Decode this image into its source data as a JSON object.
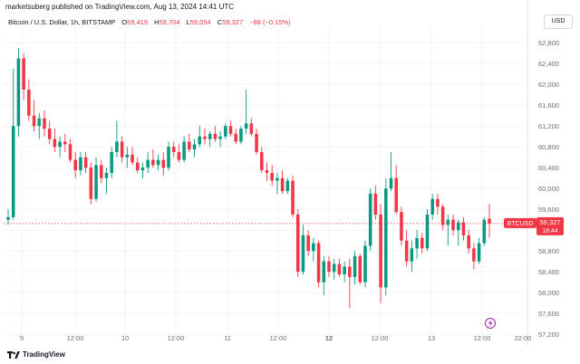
{
  "publisher": "marketsuberg published on TradingView.com, Aug 13, 2024 14:41 UTC",
  "currency_button": "USD",
  "legend": {
    "symbol": "Bitcoin / U.S. Dollar, 1h, BITSTAMP",
    "o_label": "O",
    "o_value": "59,419",
    "h_label": "H",
    "h_value": "59,704",
    "l_label": "L",
    "l_value": "59,054",
    "c_label": "C",
    "c_value": "59,327",
    "change": "−88 (−0.15%)"
  },
  "price_tag": {
    "symbol": "BTCUSD",
    "price": "59,327",
    "countdown": "18:44"
  },
  "footer_brand": "TradingView",
  "colors": {
    "up": "#089981",
    "down": "#f23645",
    "grid": "#f0f3fa",
    "text": "#131722",
    "axis_text": "#6a6d78"
  },
  "chart_data": {
    "type": "candlestick",
    "interval": "1h",
    "last_price": 59327,
    "ylim": [
      57150,
      63100
    ],
    "y_ticks": [
      "62,800",
      "62,400",
      "62,000",
      "61,600",
      "61,200",
      "60,800",
      "60,400",
      "60,000",
      "59,600",
      "59,200",
      "58,800",
      "58,400",
      "58,000",
      "57,600",
      "57,200"
    ],
    "x_tick_labels": [
      "9",
      "12:00",
      "10",
      "12:00",
      "11",
      "12:00",
      "12",
      "12:00",
      "13",
      "12:00",
      "22:00"
    ],
    "candles": [
      {
        "o": 59400,
        "h": 59600,
        "l": 59300,
        "c": 59450
      },
      {
        "o": 59450,
        "h": 62300,
        "l": 59400,
        "c": 61200
      },
      {
        "o": 61200,
        "h": 62700,
        "l": 61000,
        "c": 62500
      },
      {
        "o": 62500,
        "h": 62600,
        "l": 61700,
        "c": 61900
      },
      {
        "o": 61900,
        "h": 62100,
        "l": 61300,
        "c": 61400
      },
      {
        "o": 61400,
        "h": 61700,
        "l": 61100,
        "c": 61200
      },
      {
        "o": 61200,
        "h": 61450,
        "l": 60950,
        "c": 61350
      },
      {
        "o": 61350,
        "h": 61500,
        "l": 61000,
        "c": 61150
      },
      {
        "o": 61150,
        "h": 61300,
        "l": 60850,
        "c": 60950
      },
      {
        "o": 60950,
        "h": 61150,
        "l": 60700,
        "c": 60800
      },
      {
        "o": 60800,
        "h": 61000,
        "l": 60600,
        "c": 60900
      },
      {
        "o": 60900,
        "h": 61050,
        "l": 60700,
        "c": 60850
      },
      {
        "o": 60850,
        "h": 60950,
        "l": 60500,
        "c": 60550
      },
      {
        "o": 60550,
        "h": 60700,
        "l": 60200,
        "c": 60350
      },
      {
        "o": 60350,
        "h": 60700,
        "l": 60250,
        "c": 60600
      },
      {
        "o": 60600,
        "h": 60700,
        "l": 60300,
        "c": 60400
      },
      {
        "o": 60400,
        "h": 60500,
        "l": 59700,
        "c": 59800
      },
      {
        "o": 59800,
        "h": 60600,
        "l": 59750,
        "c": 60450
      },
      {
        "o": 60450,
        "h": 60550,
        "l": 60100,
        "c": 60200
      },
      {
        "o": 60200,
        "h": 60400,
        "l": 59900,
        "c": 60300
      },
      {
        "o": 60300,
        "h": 60800,
        "l": 60200,
        "c": 60700
      },
      {
        "o": 60700,
        "h": 61300,
        "l": 60600,
        "c": 60900
      },
      {
        "o": 60900,
        "h": 61000,
        "l": 60500,
        "c": 60600
      },
      {
        "o": 60600,
        "h": 60800,
        "l": 60400,
        "c": 60650
      },
      {
        "o": 60650,
        "h": 60800,
        "l": 60450,
        "c": 60500
      },
      {
        "o": 60500,
        "h": 60600,
        "l": 60300,
        "c": 60350
      },
      {
        "o": 60350,
        "h": 60500,
        "l": 60200,
        "c": 60400
      },
      {
        "o": 60400,
        "h": 60700,
        "l": 60300,
        "c": 60550
      },
      {
        "o": 60550,
        "h": 60750,
        "l": 60400,
        "c": 60450
      },
      {
        "o": 60450,
        "h": 60650,
        "l": 60350,
        "c": 60550
      },
      {
        "o": 60550,
        "h": 60700,
        "l": 60250,
        "c": 60400
      },
      {
        "o": 60400,
        "h": 60900,
        "l": 60350,
        "c": 60800
      },
      {
        "o": 60800,
        "h": 60900,
        "l": 60600,
        "c": 60700
      },
      {
        "o": 60700,
        "h": 60850,
        "l": 60500,
        "c": 60550
      },
      {
        "o": 60550,
        "h": 61000,
        "l": 60500,
        "c": 60900
      },
      {
        "o": 60900,
        "h": 61050,
        "l": 60700,
        "c": 60750
      },
      {
        "o": 60750,
        "h": 60950,
        "l": 60600,
        "c": 60850
      },
      {
        "o": 60850,
        "h": 61200,
        "l": 60800,
        "c": 61000
      },
      {
        "o": 61000,
        "h": 61150,
        "l": 60850,
        "c": 60950
      },
      {
        "o": 60950,
        "h": 61100,
        "l": 60800,
        "c": 61050
      },
      {
        "o": 61050,
        "h": 61200,
        "l": 60900,
        "c": 60950
      },
      {
        "o": 60950,
        "h": 61100,
        "l": 60800,
        "c": 61000
      },
      {
        "o": 61000,
        "h": 61250,
        "l": 60950,
        "c": 61200
      },
      {
        "o": 61200,
        "h": 61300,
        "l": 61000,
        "c": 61050
      },
      {
        "o": 61050,
        "h": 61150,
        "l": 60850,
        "c": 60900
      },
      {
        "o": 60900,
        "h": 61200,
        "l": 60850,
        "c": 61150
      },
      {
        "o": 61150,
        "h": 61900,
        "l": 61050,
        "c": 61250
      },
      {
        "o": 61250,
        "h": 61350,
        "l": 61000,
        "c": 61050
      },
      {
        "o": 61050,
        "h": 61150,
        "l": 60650,
        "c": 60700
      },
      {
        "o": 60700,
        "h": 60800,
        "l": 60300,
        "c": 60350
      },
      {
        "o": 60350,
        "h": 60500,
        "l": 60150,
        "c": 60300
      },
      {
        "o": 60300,
        "h": 60450,
        "l": 60050,
        "c": 60150
      },
      {
        "o": 60150,
        "h": 60300,
        "l": 59900,
        "c": 60200
      },
      {
        "o": 60200,
        "h": 60350,
        "l": 59900,
        "c": 59950
      },
      {
        "o": 59950,
        "h": 60200,
        "l": 59900,
        "c": 60150
      },
      {
        "o": 60150,
        "h": 60250,
        "l": 59450,
        "c": 59500
      },
      {
        "o": 59500,
        "h": 59600,
        "l": 58300,
        "c": 58400
      },
      {
        "o": 58400,
        "h": 59300,
        "l": 58350,
        "c": 59100
      },
      {
        "o": 59100,
        "h": 59200,
        "l": 58700,
        "c": 58800
      },
      {
        "o": 58800,
        "h": 59050,
        "l": 58600,
        "c": 58950
      },
      {
        "o": 58950,
        "h": 59000,
        "l": 58100,
        "c": 58200
      },
      {
        "o": 58200,
        "h": 58700,
        "l": 57950,
        "c": 58600
      },
      {
        "o": 58600,
        "h": 58700,
        "l": 58300,
        "c": 58400
      },
      {
        "o": 58400,
        "h": 58650,
        "l": 58250,
        "c": 58550
      },
      {
        "o": 58550,
        "h": 58650,
        "l": 58300,
        "c": 58350
      },
      {
        "o": 58350,
        "h": 58600,
        "l": 58200,
        "c": 58500
      },
      {
        "o": 58500,
        "h": 58650,
        "l": 57700,
        "c": 58300
      },
      {
        "o": 58300,
        "h": 58800,
        "l": 58150,
        "c": 58700
      },
      {
        "o": 58700,
        "h": 58750,
        "l": 58150,
        "c": 58200
      },
      {
        "o": 58200,
        "h": 59000,
        "l": 58100,
        "c": 58900
      },
      {
        "o": 58900,
        "h": 60000,
        "l": 58800,
        "c": 59900
      },
      {
        "o": 59900,
        "h": 60050,
        "l": 59400,
        "c": 59500
      },
      {
        "o": 59500,
        "h": 59700,
        "l": 57800,
        "c": 58100
      },
      {
        "o": 58100,
        "h": 60200,
        "l": 57950,
        "c": 60000
      },
      {
        "o": 60000,
        "h": 60700,
        "l": 59950,
        "c": 60200
      },
      {
        "o": 60200,
        "h": 60450,
        "l": 59500,
        "c": 59550
      },
      {
        "o": 59550,
        "h": 59650,
        "l": 58900,
        "c": 59000
      },
      {
        "o": 59000,
        "h": 59200,
        "l": 58500,
        "c": 58600
      },
      {
        "o": 58600,
        "h": 59000,
        "l": 58400,
        "c": 58850
      },
      {
        "o": 58850,
        "h": 59200,
        "l": 58650,
        "c": 59050
      },
      {
        "o": 59050,
        "h": 59150,
        "l": 58750,
        "c": 58850
      },
      {
        "o": 58850,
        "h": 59600,
        "l": 58800,
        "c": 59500
      },
      {
        "o": 59500,
        "h": 59900,
        "l": 59400,
        "c": 59800
      },
      {
        "o": 59800,
        "h": 59900,
        "l": 59500,
        "c": 59650
      },
      {
        "o": 59650,
        "h": 59700,
        "l": 59200,
        "c": 59300
      },
      {
        "o": 59300,
        "h": 59500,
        "l": 58900,
        "c": 59400
      },
      {
        "o": 59400,
        "h": 59500,
        "l": 59100,
        "c": 59200
      },
      {
        "o": 59200,
        "h": 59400,
        "l": 58900,
        "c": 59350
      },
      {
        "o": 59350,
        "h": 59450,
        "l": 59000,
        "c": 59100
      },
      {
        "o": 59100,
        "h": 59200,
        "l": 58750,
        "c": 58850
      },
      {
        "o": 58850,
        "h": 58950,
        "l": 58450,
        "c": 58600
      },
      {
        "o": 58600,
        "h": 59050,
        "l": 58550,
        "c": 58950
      },
      {
        "o": 58950,
        "h": 59450,
        "l": 58900,
        "c": 59400
      },
      {
        "o": 59419,
        "h": 59704,
        "l": 59054,
        "c": 59327
      }
    ]
  }
}
